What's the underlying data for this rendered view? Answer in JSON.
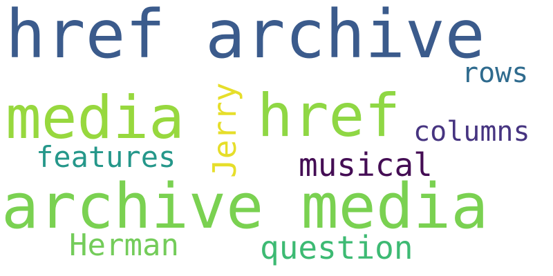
{
  "words": {
    "href_archive": {
      "text": "href archive",
      "color": "#3b5b8c"
    },
    "media": {
      "text": "media",
      "color": "#97d83e"
    },
    "href": {
      "text": "href",
      "color": "#8fd744"
    },
    "archive_media": {
      "text": "archive media",
      "color": "#7ad151"
    },
    "rows": {
      "text": "rows",
      "color": "#2f6b8e"
    },
    "columns": {
      "text": "columns",
      "color": "#463480"
    },
    "features": {
      "text": "features",
      "color": "#25978a"
    },
    "musical": {
      "text": "musical",
      "color": "#440d54"
    },
    "jerry": {
      "text": "Jerry",
      "color": "#e6de2a"
    },
    "herman": {
      "text": "Herman",
      "color": "#74cc5a"
    },
    "question": {
      "text": "question",
      "color": "#3dba73"
    }
  }
}
